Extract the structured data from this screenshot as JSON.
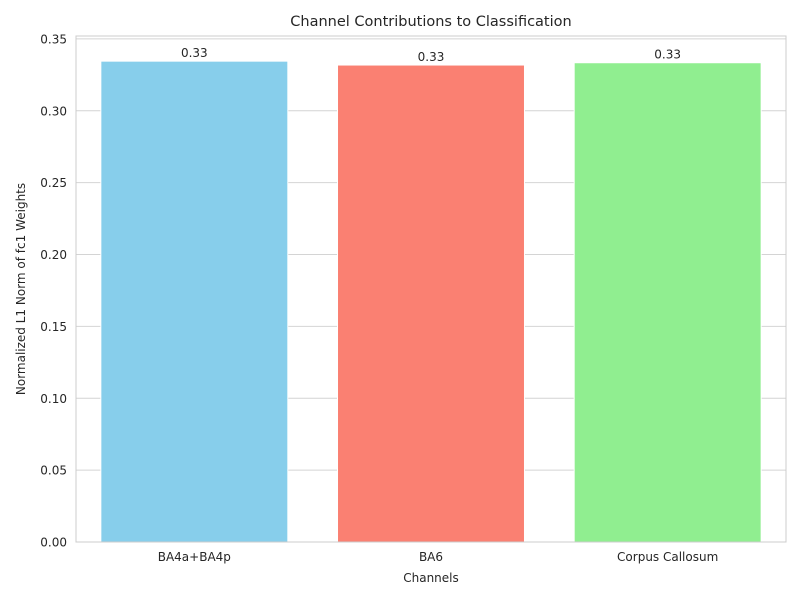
{
  "chart_data": {
    "type": "bar",
    "title": "Channel Contributions to Classification",
    "xlabel": "Channels",
    "ylabel": "Normalized L1 Norm of fc1 Weights",
    "categories": [
      "BA4a+BA4p",
      "BA6",
      "Corpus Callosum"
    ],
    "values": [
      0.3345,
      0.3318,
      0.3334
    ],
    "data_labels": [
      "0.33",
      "0.33",
      "0.33"
    ],
    "colors": [
      "#87ceeb",
      "#fa8072",
      "#90ee90"
    ],
    "ylim": [
      0,
      0.352
    ],
    "yticks": [
      0.0,
      0.05,
      0.1,
      0.15,
      0.2,
      0.25,
      0.3,
      0.35
    ],
    "ytick_labels": [
      "0.00",
      "0.05",
      "0.10",
      "0.15",
      "0.20",
      "0.25",
      "0.30",
      "0.35"
    ],
    "grid": "horizontal",
    "legend": "none"
  }
}
